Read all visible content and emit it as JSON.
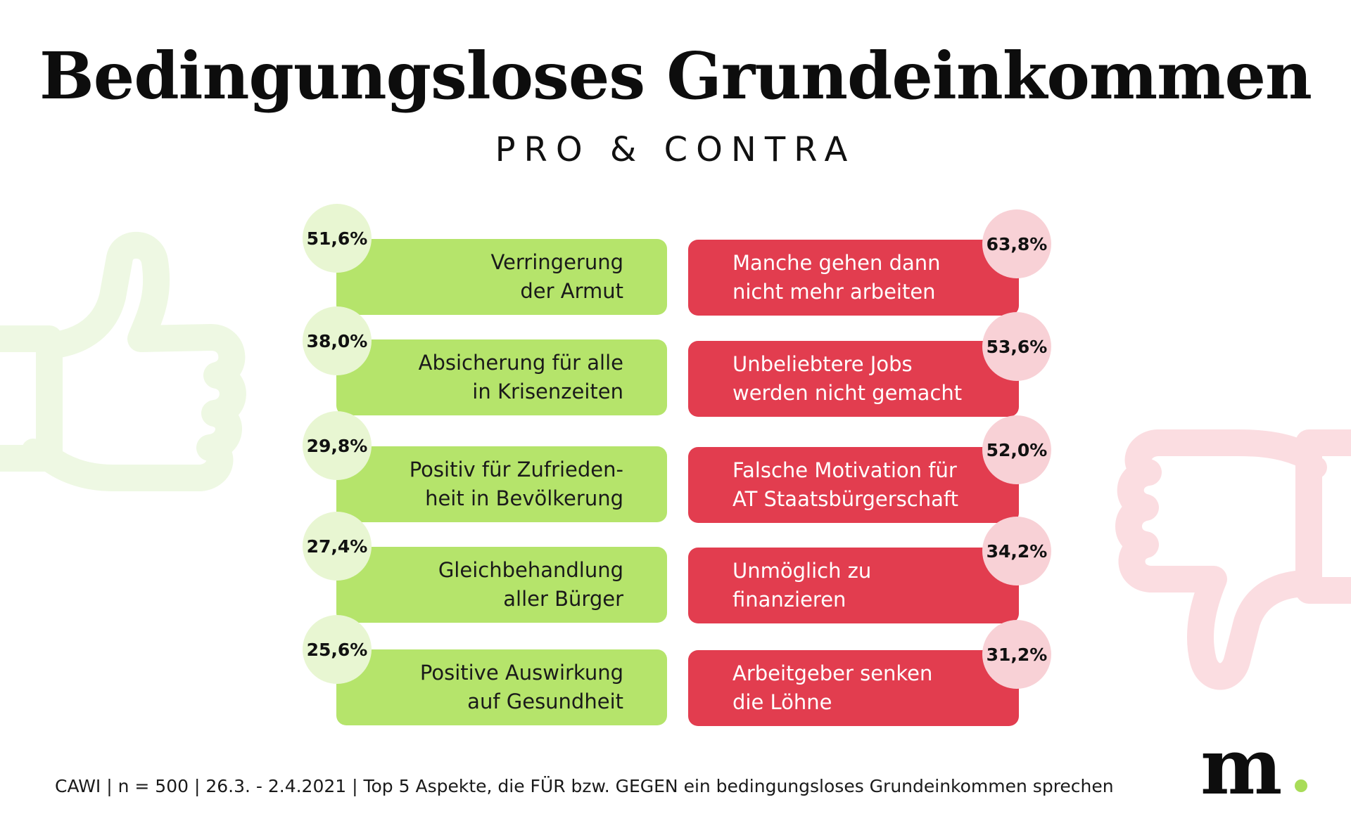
{
  "title": "Bedingungsloses Grundeinkommen",
  "subtitle": "PRO & CONTRA",
  "colors": {
    "pro_bar": "#b5e46b",
    "pro_circle": "#e8f6d2",
    "contra_bar": "#e23d4f",
    "contra_circle": "#f8d1d6",
    "thumb_up": "#eef8e3",
    "thumb_down": "#fbdde1",
    "logo_dot": "#a8dc58"
  },
  "icons": {
    "left": "thumbs-up-icon",
    "right": "thumbs-down-icon"
  },
  "chart_data": {
    "type": "table",
    "title": "Bedingungsloses Grundeinkommen",
    "subtitle": "PRO & CONTRA",
    "pro": [
      {
        "value": 51.6,
        "value_label": "51,6%",
        "lines": [
          "Verringerung",
          "der Armut"
        ]
      },
      {
        "value": 38.0,
        "value_label": "38,0%",
        "lines": [
          "Absicherung für alle",
          "in Krisenzeiten"
        ]
      },
      {
        "value": 29.8,
        "value_label": "29,8%",
        "lines": [
          "Positiv für Zufrieden-",
          "heit in Bevölkerung"
        ]
      },
      {
        "value": 27.4,
        "value_label": "27,4%",
        "lines": [
          "Gleichbehandlung",
          "aller Bürger"
        ]
      },
      {
        "value": 25.6,
        "value_label": "25,6%",
        "lines": [
          "Positive Auswirkung",
          "auf Gesundheit"
        ]
      }
    ],
    "contra": [
      {
        "value": 63.8,
        "value_label": "63,8%",
        "lines": [
          "Manche gehen dann",
          "nicht mehr arbeiten"
        ]
      },
      {
        "value": 53.6,
        "value_label": "53,6%",
        "lines": [
          "Unbeliebtere Jobs",
          "werden nicht gemacht"
        ]
      },
      {
        "value": 52.0,
        "value_label": "52,0%",
        "lines": [
          "Falsche Motivation für",
          "AT Staatsbürgerschaft"
        ]
      },
      {
        "value": 34.2,
        "value_label": "34,2%",
        "lines": [
          "Unmöglich zu",
          "finanzieren"
        ]
      },
      {
        "value": 31.2,
        "value_label": "31,2%",
        "lines": [
          "Arbeitgeber senken",
          "die Löhne"
        ]
      }
    ]
  },
  "footer": {
    "note": "CAWI | n = 500 | 26.3. - 2.4.2021 | Top 5 Aspekte, die FÜR bzw. GEGEN ein bedingungsloses Grundeinkommen sprechen",
    "logo": "m"
  }
}
